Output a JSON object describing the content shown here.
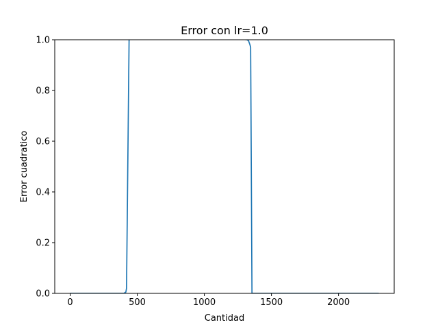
{
  "chart_data": {
    "type": "line",
    "title": "Error con lr=1.0",
    "xlabel": "Cantidad",
    "ylabel": "Error cuadratico",
    "xlim": [
      -115,
      2415
    ],
    "ylim": [
      0,
      1.0
    ],
    "x_ticks": [
      0,
      500,
      1000,
      1500,
      2000
    ],
    "x_tick_labels": [
      "0",
      "500",
      "1000",
      "1500",
      "2000"
    ],
    "y_ticks": [
      0.0,
      0.2,
      0.4,
      0.6,
      0.8,
      1.0
    ],
    "y_tick_labels": [
      "0.0",
      "0.2",
      "0.4",
      "0.6",
      "0.8",
      "1.0"
    ],
    "grid": false,
    "series": [
      {
        "color": "#1f77b4",
        "x": [
          0,
          400,
          415,
          420,
          440,
          1320,
          1330,
          1340,
          1345,
          1355,
          2300
        ],
        "y": [
          0.0,
          0.0,
          0.005,
          0.02,
          1.05,
          1.0,
          0.995,
          0.98,
          0.97,
          0.0,
          0.0
        ]
      }
    ]
  }
}
